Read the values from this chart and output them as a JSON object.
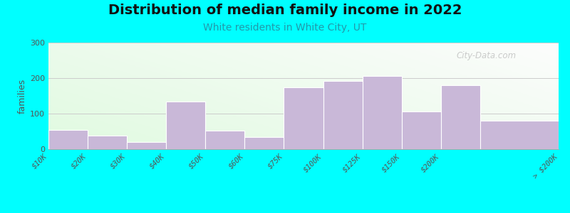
{
  "title": "Distribution of median family income in 2022",
  "subtitle": "White residents in White City, UT",
  "ylabel": "families",
  "background_outer": "#00FFFF",
  "bar_color": "#C9B8D8",
  "title_fontsize": 14,
  "subtitle_fontsize": 10,
  "subtitle_color": "#2299AA",
  "bin_edges": [
    0,
    1,
    2,
    3,
    4,
    5,
    6,
    7,
    8,
    9,
    10,
    11,
    13
  ],
  "values": [
    55,
    38,
    20,
    135,
    52,
    35,
    175,
    193,
    207,
    107,
    180,
    80
  ],
  "tick_positions": [
    0,
    1,
    2,
    3,
    4,
    5,
    6,
    7,
    8,
    9,
    10,
    11,
    13
  ],
  "tick_labels": [
    "$10K",
    "$20K",
    "$30K",
    "$40K",
    "$50K",
    "$60K",
    "$75K",
    "$100K",
    "$125K",
    "$150K",
    "$200K",
    "",
    "> $200K"
  ],
  "ylim": [
    0,
    300
  ],
  "yticks": [
    0,
    100,
    200,
    300
  ],
  "grid_color": "#cccccc",
  "watermark": "City-Data.com"
}
